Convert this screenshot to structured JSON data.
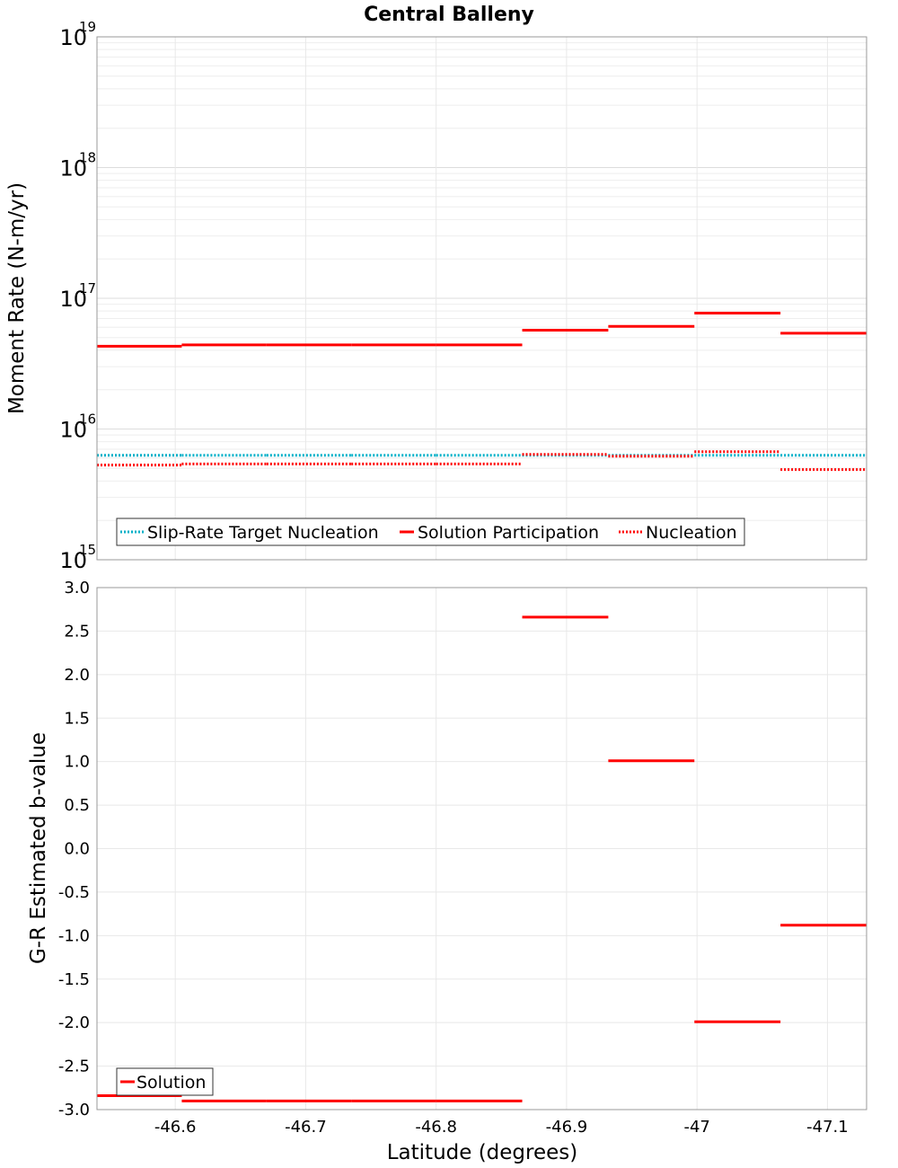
{
  "title": "Central Balleny",
  "colors": {
    "solution": "#ff0000",
    "nucleation": "#ff0000",
    "target": "#00b0c8",
    "grid": "#e8e8e8",
    "frame": "#999999"
  },
  "chart_data": [
    {
      "type": "line",
      "name": "moment-rate",
      "title": "Central Balleny",
      "xlabel": "",
      "ylabel": "Moment Rate (N-m/yr)",
      "yscale": "log",
      "ylim": [
        1000000000000000.0,
        1e+19
      ],
      "y_ticks": [
        {
          "base": "10",
          "exp": "15",
          "value": 1000000000000000.0
        },
        {
          "base": "10",
          "exp": "16",
          "value": 1e+16
        },
        {
          "base": "10",
          "exp": "17",
          "value": 1e+17
        },
        {
          "base": "10",
          "exp": "18",
          "value": 1e+18
        },
        {
          "base": "10",
          "exp": "19",
          "value": 1e+19
        }
      ],
      "xlim": [
        -46.54,
        -47.13
      ],
      "grid": true,
      "legend_position": "bottom-left",
      "segments_x": [
        -46.54,
        -46.605,
        -46.67,
        -46.735,
        -46.8,
        -46.866,
        -46.932,
        -46.998,
        -47.064,
        -47.13
      ],
      "series": [
        {
          "name": "Slip-Rate Target Nucleation",
          "style": "dotted",
          "color": "#00b0c8",
          "values": [
            6300000000000000.0,
            6300000000000000.0,
            6300000000000000.0,
            6300000000000000.0,
            6300000000000000.0,
            6300000000000000.0,
            6300000000000000.0,
            6300000000000000.0,
            6300000000000000.0
          ]
        },
        {
          "name": "Solution Participation",
          "style": "solid",
          "color": "#ff0000",
          "values": [
            4.3e+16,
            4.4e+16,
            4.4e+16,
            4.4e+16,
            4.4e+16,
            5.7e+16,
            6.1e+16,
            7.7e+16,
            5.4e+16
          ]
        },
        {
          "name": "Nucleation",
          "style": "dotted",
          "color": "#ff0000",
          "values": [
            5300000000000000.0,
            5400000000000000.0,
            5400000000000000.0,
            5400000000000000.0,
            5400000000000000.0,
            6400000000000000.0,
            6200000000000000.0,
            6700000000000000.0,
            4900000000000000.0
          ]
        }
      ]
    },
    {
      "type": "line",
      "name": "b-value",
      "title": "",
      "xlabel": "Latitude (degrees)",
      "ylabel": "G-R Estimated b-value",
      "ylim": [
        -3.0,
        3.0
      ],
      "y_ticks": [
        "3.0",
        "2.5",
        "2.0",
        "1.5",
        "1.0",
        "0.5",
        "0.0",
        "-0.5",
        "-1.0",
        "-1.5",
        "-2.0",
        "-2.5",
        "-3.0"
      ],
      "xlim": [
        -46.54,
        -47.13
      ],
      "x_ticks": [
        {
          "label": "-46.6",
          "value": -46.6
        },
        {
          "label": "-46.7",
          "value": -46.7
        },
        {
          "label": "-46.8",
          "value": -46.8
        },
        {
          "label": "-46.9",
          "value": -46.9
        },
        {
          "label": "-47",
          "value": -47.0
        },
        {
          "label": "-47.1",
          "value": -47.1
        }
      ],
      "grid": true,
      "legend_position": "bottom-left",
      "segments_x": [
        -46.54,
        -46.605,
        -46.67,
        -46.735,
        -46.8,
        -46.866,
        -46.932,
        -46.998,
        -47.064,
        -47.13
      ],
      "series": [
        {
          "name": "Solution",
          "style": "solid",
          "color": "#ff0000",
          "values": [
            -2.84,
            -2.9,
            -2.9,
            -2.9,
            -2.9,
            2.66,
            1.01,
            -1.99,
            -0.88
          ]
        }
      ]
    }
  ]
}
